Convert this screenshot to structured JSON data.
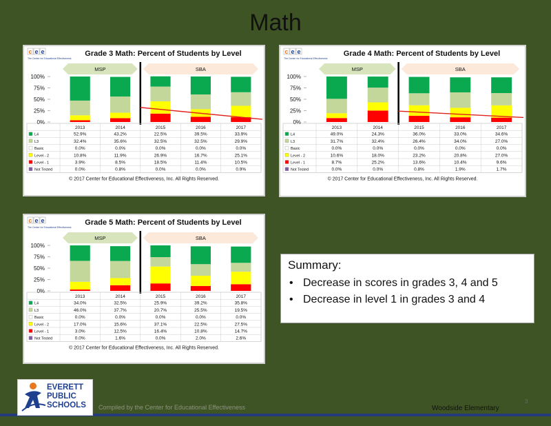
{
  "slide": {
    "title": "Math",
    "footer_compiled": "Compiled by the Center for Educational Effectiveness",
    "footer_school": "Woodside Elementary",
    "logo_lines": [
      "EVERETT",
      "PUBLIC",
      "SCHOOLS"
    ],
    "page_number": "3"
  },
  "summary": {
    "title": "Summary:",
    "bullets": [
      "Decrease in scores in grades 3, 4  and 5",
      "Decrease in level 1 in grades 3 and 4"
    ]
  },
  "cee_logo": {
    "letters": [
      "c",
      "e",
      "e"
    ],
    "tagline": "The Center for Educational Effectiveness"
  },
  "colors": {
    "L4": "#0aa84f",
    "L3": "#c4d79b",
    "Basic": "#ffffff",
    "Level2": "#ffff00",
    "Level1": "#ff0000",
    "NotTested": "#7f5fa0",
    "msp_band": "#d8e4bc",
    "sba_band": "#fde9d9",
    "background": "#3f5424"
  },
  "chart_data": [
    {
      "type": "bar",
      "stacked": true,
      "title": "Grade 3 Math: Percent of Students by Level",
      "categories": [
        "2013",
        "2014",
        "2015",
        "2016",
        "2017"
      ],
      "groups": [
        {
          "label": "MSP",
          "from": 0,
          "to": 1
        },
        {
          "label": "SBA",
          "from": 2,
          "to": 4
        }
      ],
      "yticks": [
        "100%",
        "75%",
        "50%",
        "25%",
        "0%"
      ],
      "ylim": [
        0,
        100
      ],
      "trend": {
        "from": 32,
        "to": 6
      },
      "series": [
        {
          "name": "L4",
          "values": [
            52.9,
            43.2,
            22.5,
            39.5,
            33.9
          ],
          "labels": [
            "52.9%",
            "43.2%",
            "22.5%",
            "39.5%",
            "33.9%"
          ]
        },
        {
          "name": "L3",
          "values": [
            32.4,
            35.6,
            32.5,
            32.5,
            29.9
          ],
          "labels": [
            "32.4%",
            "35.6%",
            "32.5%",
            "32.5%",
            "29.9%"
          ]
        },
        {
          "name": "Basic",
          "values": [
            0,
            0,
            0,
            0,
            0
          ],
          "labels": [
            "0.0%",
            "0.0%",
            "0.0%",
            "0.0%",
            "0.0%"
          ]
        },
        {
          "name": "Level - 2",
          "values": [
            10.8,
            11.9,
            26.9,
            16.7,
            25.1
          ],
          "labels": [
            "10.8%",
            "11.9%",
            "26.9%",
            "16.7%",
            "25.1%"
          ]
        },
        {
          "name": "Level - 1",
          "values": [
            3.9,
            8.5,
            18.5,
            11.4,
            10.5
          ],
          "labels": [
            "3.9%",
            "8.5%",
            "18.5%",
            "11.4%",
            "10.5%"
          ]
        },
        {
          "name": "Not Tested",
          "values": [
            0,
            0.8,
            0,
            0,
            0.9
          ],
          "labels": [
            "0.0%",
            "0.8%",
            "0.0%",
            "0.0%",
            "0.9%"
          ]
        }
      ],
      "copyright": "© 2017 Center for Educational Effectiveness, Inc. All Rights Reserved."
    },
    {
      "type": "bar",
      "stacked": true,
      "title": "Grade 4 Math: Percent of Students by Level",
      "categories": [
        "2013",
        "2014",
        "2015",
        "2016",
        "2017"
      ],
      "groups": [
        {
          "label": "MSP",
          "from": 0,
          "to": 1
        },
        {
          "label": "SBA",
          "from": 2,
          "to": 4
        }
      ],
      "yticks": [
        "100%",
        "75%",
        "50%",
        "25%",
        "0%"
      ],
      "ylim": [
        0,
        100
      ],
      "trend": {
        "from": 24,
        "to": 10
      },
      "series": [
        {
          "name": "L4",
          "values": [
            49.0,
            24.3,
            36.0,
            33.0,
            34.6
          ],
          "labels": [
            "49.0%",
            "24.3%",
            "36.0%",
            "33.0%",
            "34.6%"
          ]
        },
        {
          "name": "L3",
          "values": [
            31.7,
            32.4,
            26.4,
            34.0,
            27.0
          ],
          "labels": [
            "31.7%",
            "32.4%",
            "26.4%",
            "34.0%",
            "27.0%"
          ]
        },
        {
          "name": "Basic",
          "values": [
            0,
            0,
            0,
            0,
            0
          ],
          "labels": [
            "0.0%",
            "0.0%",
            "0.0%",
            "0.0%",
            "0.0%"
          ]
        },
        {
          "name": "Level - 2",
          "values": [
            10.6,
            18.0,
            23.2,
            20.8,
            27.0
          ],
          "labels": [
            "10.6%",
            "18.0%",
            "23.2%",
            "20.8%",
            "27.0%"
          ]
        },
        {
          "name": "Level - 1",
          "values": [
            8.7,
            25.2,
            13.6,
            10.4,
            9.6
          ],
          "labels": [
            "8.7%",
            "25.2%",
            "13.6%",
            "10.4%",
            "9.6%"
          ]
        },
        {
          "name": "Not Tested",
          "values": [
            0,
            0,
            0.8,
            1.9,
            1.7
          ],
          "labels": [
            "0.0%",
            "0.0%",
            "0.8%",
            "1.9%",
            "1.7%"
          ]
        }
      ],
      "copyright": "© 2017 Center for Educational Effectiveness, Inc. All Rights Reserved."
    },
    {
      "type": "bar",
      "stacked": true,
      "title": "Grade 5 Math: Percent of Students by Level",
      "categories": [
        "2013",
        "2014",
        "2015",
        "2016",
        "2017"
      ],
      "groups": [
        {
          "label": "MSP",
          "from": 0,
          "to": 1
        },
        {
          "label": "SBA",
          "from": 2,
          "to": 4
        }
      ],
      "yticks": [
        "100%",
        "75%",
        "50%",
        "25%",
        "0%"
      ],
      "ylim": [
        0,
        100
      ],
      "series": [
        {
          "name": "L4",
          "values": [
            34.0,
            32.5,
            25.9,
            39.2,
            35.8
          ],
          "labels": [
            "34.0%",
            "32.5%",
            "25.9%",
            "39.2%",
            "35.8%"
          ]
        },
        {
          "name": "L3",
          "values": [
            46.0,
            37.7,
            20.7,
            25.5,
            19.5
          ],
          "labels": [
            "46.0%",
            "37.7%",
            "20.7%",
            "25.5%",
            "19.5%"
          ]
        },
        {
          "name": "Basic",
          "values": [
            0,
            0,
            0,
            0,
            0
          ],
          "labels": [
            "0.0%",
            "0.0%",
            "0.0%",
            "0.0%",
            "0.0%"
          ]
        },
        {
          "name": "Level - 2",
          "values": [
            17.0,
            15.6,
            37.1,
            22.5,
            27.5
          ],
          "labels": [
            "17.0%",
            "15.6%",
            "37.1%",
            "22.5%",
            "27.5%"
          ]
        },
        {
          "name": "Level - 1",
          "values": [
            3.0,
            12.5,
            16.4,
            10.8,
            14.7
          ],
          "labels": [
            "3.0%",
            "12.5%",
            "16.4%",
            "10.8%",
            "14.7%"
          ]
        },
        {
          "name": "Not Tested",
          "values": [
            0,
            1.6,
            0,
            2.0,
            2.6
          ],
          "labels": [
            "0.0%",
            "1.6%",
            "0.0%",
            "2.0%",
            "2.6%"
          ]
        }
      ],
      "copyright": "© 2017 Center for Educational Effectiveness, Inc. All Rights Reserved."
    }
  ]
}
